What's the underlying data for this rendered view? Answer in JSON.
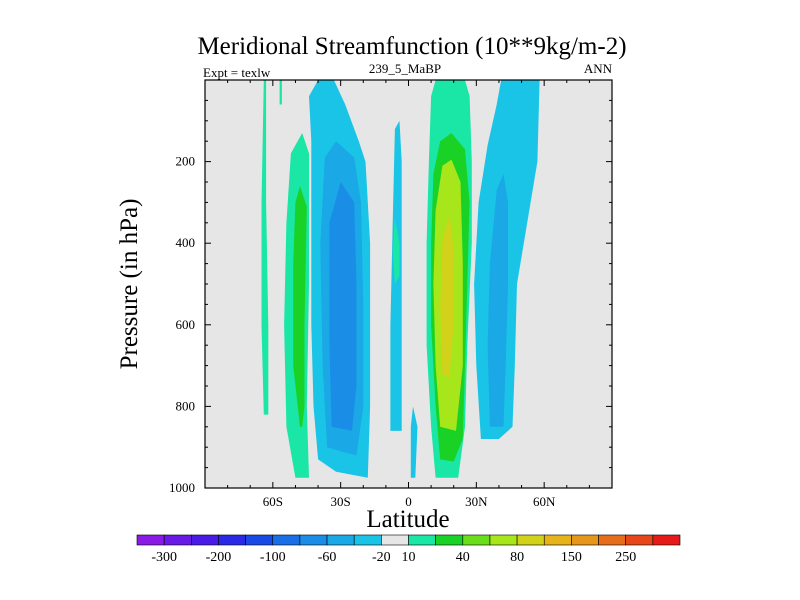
{
  "chart_data": {
    "type": "contour",
    "title": "Meridional Streamfunction (10**9kg/m-2)",
    "left_label": "Expt = texlw",
    "center_label": "239_5_MaBP",
    "right_label": "ANN",
    "xlabel": "Latitude",
    "ylabel": "Pressure (in hPa)",
    "xlim": [
      -90,
      90
    ],
    "ylim": [
      1000,
      0
    ],
    "x_ticks": [
      {
        "value": -60,
        "label": "60S"
      },
      {
        "value": -30,
        "label": "30S"
      },
      {
        "value": 0,
        "label": "0"
      },
      {
        "value": 30,
        "label": "30N"
      },
      {
        "value": 60,
        "label": "60N"
      }
    ],
    "y_ticks": [
      {
        "value": 200,
        "label": "200"
      },
      {
        "value": 400,
        "label": "400"
      },
      {
        "value": 600,
        "label": "600"
      },
      {
        "value": 800,
        "label": "800"
      },
      {
        "value": 1000,
        "label": "1000"
      }
    ],
    "background_color": "#e6e6e6",
    "colorbar": {
      "colors": [
        "#8a1ae6",
        "#6a1ae6",
        "#4a1ae6",
        "#2a2ae6",
        "#1a4ae6",
        "#1a6ee6",
        "#1a8ee6",
        "#1aa8e6",
        "#1ac4e6",
        "#e6e6e6",
        "#1ae6a6",
        "#1ad226",
        "#6ade1a",
        "#a6e61a",
        "#d2d21a",
        "#e6b41a",
        "#e6961a",
        "#e66e1a",
        "#e6461a",
        "#e61a1a"
      ],
      "tick_labels": [
        "-300",
        "-200",
        "-100",
        "-60",
        "-20",
        "10",
        "40",
        "80",
        "150",
        "250"
      ]
    },
    "contour_regions": [
      {
        "name": "nh-weak-positive-cell",
        "value": 10,
        "color": "#1ae6a6",
        "points": [
          [
            12,
            975
          ],
          [
            10,
            850
          ],
          [
            8,
            650
          ],
          [
            8,
            400
          ],
          [
            9,
            200
          ],
          [
            10,
            40
          ],
          [
            12,
            0
          ],
          [
            25,
            0
          ],
          [
            27,
            40
          ],
          [
            28,
            200
          ],
          [
            28,
            400
          ],
          [
            26,
            650
          ],
          [
            25,
            850
          ],
          [
            22,
            975
          ]
        ]
      },
      {
        "name": "nh-moderate-positive-cell",
        "value": 40,
        "color": "#1ad226",
        "points": [
          [
            14,
            930
          ],
          [
            12,
            800
          ],
          [
            10,
            600
          ],
          [
            10,
            400
          ],
          [
            11,
            230
          ],
          [
            14,
            150
          ],
          [
            19,
            130
          ],
          [
            25,
            170
          ],
          [
            27,
            300
          ],
          [
            26,
            500
          ],
          [
            25,
            700
          ],
          [
            24,
            880
          ],
          [
            20,
            935
          ]
        ]
      },
      {
        "name": "nh-strong-positive-core",
        "value": 80,
        "color": "#a6e61a",
        "points": [
          [
            14,
            850
          ],
          [
            12,
            700
          ],
          [
            11,
            500
          ],
          [
            12,
            320
          ],
          [
            15,
            210
          ],
          [
            19,
            195
          ],
          [
            23,
            250
          ],
          [
            24,
            450
          ],
          [
            24,
            700
          ],
          [
            21,
            860
          ]
        ]
      },
      {
        "name": "nh-peak-positive-core",
        "value": 120,
        "color": "#d2d21a",
        "points": [
          [
            15,
            720
          ],
          [
            14,
            560
          ],
          [
            15,
            400
          ],
          [
            18,
            330
          ],
          [
            20,
            420
          ],
          [
            20,
            600
          ],
          [
            18,
            730
          ]
        ]
      },
      {
        "name": "sh-weak-positive-cell",
        "value": 10,
        "color": "#1ae6a6",
        "points": [
          [
            -50,
            975
          ],
          [
            -54,
            850
          ],
          [
            -55,
            600
          ],
          [
            -54,
            350
          ],
          [
            -52,
            180
          ],
          [
            -47,
            130
          ],
          [
            -44,
            180
          ],
          [
            -44,
            500
          ],
          [
            -45,
            800
          ],
          [
            -44,
            975
          ]
        ]
      },
      {
        "name": "sh-moderate-positive-cell",
        "value": 40,
        "color": "#1ad226",
        "points": [
          [
            -48,
            850
          ],
          [
            -51,
            700
          ],
          [
            -51,
            450
          ],
          [
            -50,
            300
          ],
          [
            -48,
            260
          ],
          [
            -45,
            310
          ],
          [
            -46,
            600
          ],
          [
            -46,
            800
          ],
          [
            -47,
            850
          ]
        ]
      },
      {
        "name": "polar-positive-streak",
        "value": 10,
        "color": "#1ae6a6",
        "points": [
          [
            -64,
            820
          ],
          [
            -65,
            600
          ],
          [
            -65,
            300
          ],
          [
            -64,
            0
          ],
          [
            -63,
            0
          ],
          [
            -63,
            300
          ],
          [
            -62,
            600
          ],
          [
            -62,
            820
          ]
        ]
      },
      {
        "name": "sh-upper-positive-sliver",
        "value": 10,
        "color": "#1ae6a6",
        "points": [
          [
            -57,
            0
          ],
          [
            -57,
            60
          ],
          [
            -56,
            60
          ],
          [
            -56,
            0
          ]
        ]
      },
      {
        "name": "sh-negative-cell-outer",
        "value": -10,
        "color": "#1ac4e6",
        "points": [
          [
            -40,
            930
          ],
          [
            -42,
            800
          ],
          [
            -43,
            600
          ],
          [
            -43,
            350
          ],
          [
            -43,
            150
          ],
          [
            -44,
            40
          ],
          [
            -40,
            0
          ],
          [
            -33,
            0
          ],
          [
            -28,
            60
          ],
          [
            -22,
            150
          ],
          [
            -19,
            200
          ],
          [
            -17,
            400
          ],
          [
            -17,
            650
          ],
          [
            -17,
            800
          ],
          [
            -18,
            975
          ],
          [
            -32,
            960
          ]
        ]
      },
      {
        "name": "sh-negative-cell-middle",
        "value": -30,
        "color": "#1aa8e6",
        "points": [
          [
            -36,
            900
          ],
          [
            -38,
            700
          ],
          [
            -39,
            400
          ],
          [
            -37,
            190
          ],
          [
            -32,
            150
          ],
          [
            -24,
            190
          ],
          [
            -21,
            300
          ],
          [
            -20,
            550
          ],
          [
            -20,
            800
          ],
          [
            -23,
            920
          ],
          [
            -30,
            910
          ]
        ]
      },
      {
        "name": "sh-negative-cell-core",
        "value": -60,
        "color": "#1a8ee6",
        "points": [
          [
            -34,
            850
          ],
          [
            -35,
            650
          ],
          [
            -35,
            350
          ],
          [
            -30,
            250
          ],
          [
            -24,
            300
          ],
          [
            -23,
            500
          ],
          [
            -23,
            750
          ],
          [
            -25,
            860
          ]
        ]
      },
      {
        "name": "equatorial-negative-streak",
        "value": -10,
        "color": "#1ac4e6",
        "points": [
          [
            -8,
            860
          ],
          [
            -8,
            600
          ],
          [
            -7,
            350
          ],
          [
            -6,
            120
          ],
          [
            -4,
            100
          ],
          [
            -3,
            200
          ],
          [
            -3,
            600
          ],
          [
            -3,
            860
          ]
        ]
      },
      {
        "name": "equatorial-positive-blob",
        "value": 10,
        "color": "#1ae6a6",
        "points": [
          [
            -6,
            500
          ],
          [
            -7,
            420
          ],
          [
            -6,
            340
          ],
          [
            -4,
            400
          ],
          [
            -4,
            480
          ]
        ]
      },
      {
        "name": "surface-negative-streak",
        "value": -10,
        "color": "#1ac4e6",
        "points": [
          [
            1,
            975
          ],
          [
            1,
            850
          ],
          [
            2,
            800
          ],
          [
            4,
            850
          ],
          [
            3,
            975
          ]
        ]
      },
      {
        "name": "nh-negative-cell-outer",
        "value": -10,
        "color": "#1ac4e6",
        "points": [
          [
            32,
            880
          ],
          [
            30,
            700
          ],
          [
            29,
            500
          ],
          [
            31,
            300
          ],
          [
            35,
            160
          ],
          [
            39,
            60
          ],
          [
            41,
            0
          ],
          [
            58,
            0
          ],
          [
            57,
            200
          ],
          [
            54,
            300
          ],
          [
            48,
            500
          ],
          [
            47,
            700
          ],
          [
            46,
            850
          ],
          [
            40,
            880
          ]
        ]
      },
      {
        "name": "nh-negative-cell-core",
        "value": -30,
        "color": "#1aa8e6",
        "points": [
          [
            36,
            850
          ],
          [
            35,
            650
          ],
          [
            36,
            450
          ],
          [
            39,
            270
          ],
          [
            42,
            230
          ],
          [
            44,
            300
          ],
          [
            44,
            500
          ],
          [
            43,
            700
          ],
          [
            42,
            850
          ]
        ]
      }
    ]
  }
}
